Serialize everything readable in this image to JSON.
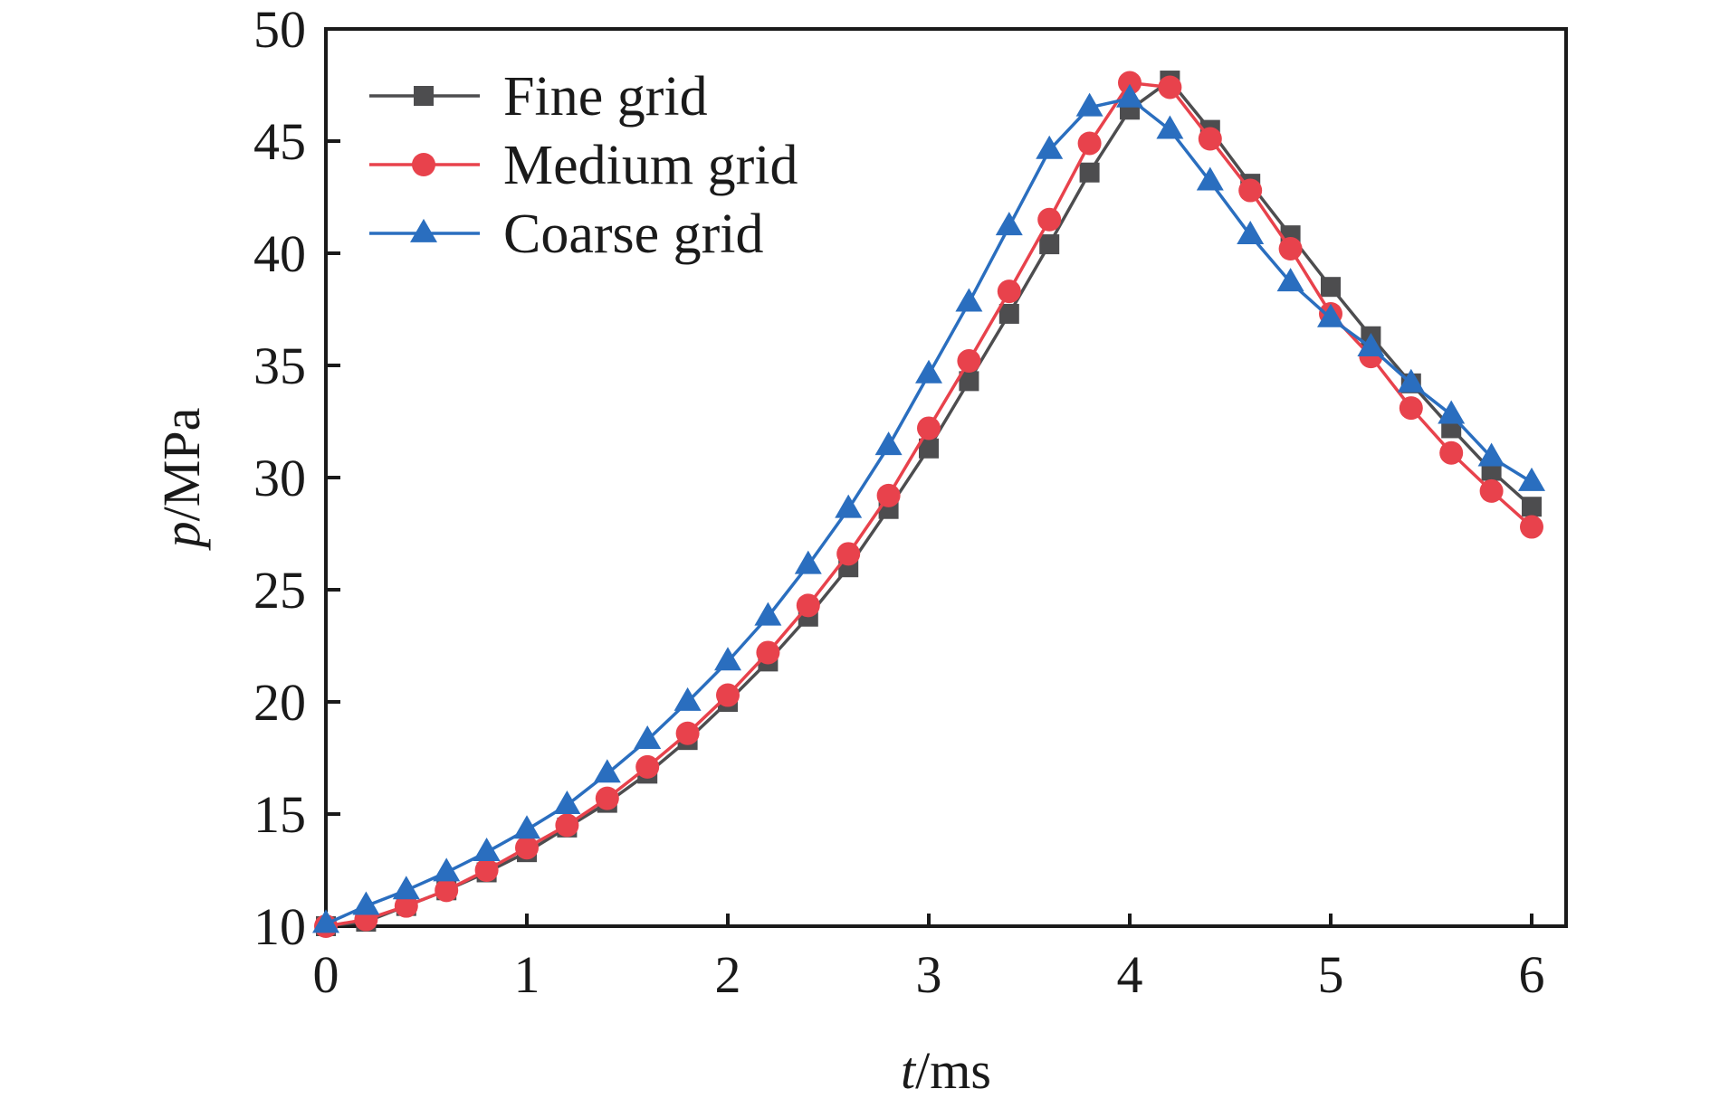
{
  "chart_data": {
    "type": "line",
    "title": "",
    "xlabel": "t/ms",
    "xlabel_italic": "t",
    "xlabel_unit": "/ms",
    "ylabel": "p/MPa",
    "ylabel_italic": "p",
    "ylabel_unit": "/MPa",
    "xlim": [
      0,
      6
    ],
    "ylim": [
      10,
      50
    ],
    "xticks": [
      0,
      1,
      2,
      3,
      4,
      5,
      6
    ],
    "yticks": [
      10,
      15,
      20,
      25,
      30,
      35,
      40,
      45,
      50
    ],
    "grid": false,
    "legend_position": "top-left",
    "x": [
      0,
      0.2,
      0.4,
      0.6,
      0.8,
      1.0,
      1.2,
      1.4,
      1.6,
      1.8,
      2.0,
      2.2,
      2.4,
      2.6,
      2.8,
      3.0,
      3.2,
      3.4,
      3.6,
      3.8,
      4.0,
      4.2,
      4.4,
      4.6,
      4.8,
      5.0,
      5.2,
      5.4,
      5.6,
      5.8,
      6.0
    ],
    "series": [
      {
        "name": "Fine grid",
        "marker": "square",
        "color": "#4d4d4f",
        "values": [
          10.0,
          10.2,
          10.9,
          11.6,
          12.4,
          13.3,
          14.4,
          15.5,
          16.8,
          18.3,
          20.0,
          21.8,
          23.8,
          26.0,
          28.6,
          31.3,
          34.3,
          37.3,
          40.4,
          43.6,
          46.4,
          47.7,
          45.5,
          43.1,
          40.8,
          38.5,
          36.3,
          34.2,
          32.2,
          30.3,
          28.7
        ]
      },
      {
        "name": "Medium grid",
        "marker": "circle",
        "color": "#e8424c",
        "values": [
          10.0,
          10.3,
          10.9,
          11.6,
          12.5,
          13.5,
          14.5,
          15.7,
          17.1,
          18.6,
          20.3,
          22.2,
          24.3,
          26.6,
          29.2,
          32.2,
          35.2,
          38.3,
          41.5,
          44.9,
          47.6,
          47.4,
          45.1,
          42.8,
          40.2,
          37.3,
          35.4,
          33.1,
          31.1,
          29.4,
          27.8
        ]
      },
      {
        "name": "Coarse grid",
        "marker": "triangle",
        "color": "#2a6ebf",
        "values": [
          10.1,
          10.9,
          11.6,
          12.4,
          13.3,
          14.3,
          15.4,
          16.8,
          18.3,
          20.0,
          21.8,
          23.8,
          26.1,
          28.6,
          31.4,
          34.6,
          37.8,
          41.2,
          44.6,
          46.5,
          46.9,
          45.5,
          43.2,
          40.8,
          38.7,
          37.1,
          35.8,
          34.2,
          32.8,
          30.9,
          29.8
        ]
      }
    ]
  }
}
